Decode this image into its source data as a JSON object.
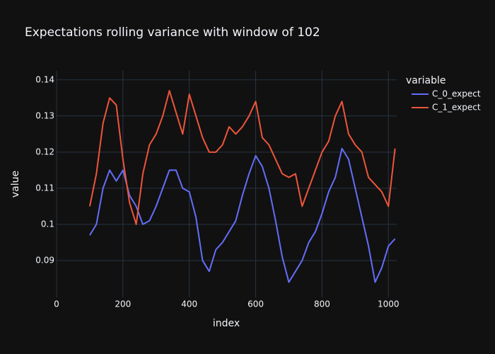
{
  "chart_data": {
    "type": "line",
    "title": "Expectations rolling variance with window of 102",
    "x_label": "index",
    "y_label": "value",
    "legend_title": "variable",
    "x": [
      100,
      120,
      140,
      160,
      180,
      200,
      220,
      240,
      260,
      280,
      300,
      320,
      340,
      360,
      380,
      400,
      420,
      440,
      460,
      480,
      500,
      520,
      540,
      560,
      580,
      600,
      620,
      640,
      660,
      680,
      700,
      720,
      740,
      760,
      780,
      800,
      820,
      840,
      860,
      880,
      900,
      920,
      940,
      960,
      980,
      1000,
      1020
    ],
    "series": [
      {
        "name": "C_0_expect",
        "color": "#636efa",
        "values": [
          0.097,
          0.1,
          0.11,
          0.115,
          0.112,
          0.115,
          0.108,
          0.105,
          0.1,
          0.101,
          0.105,
          0.11,
          0.115,
          0.115,
          0.11,
          0.109,
          0.102,
          0.09,
          0.087,
          0.093,
          0.095,
          0.098,
          0.101,
          0.108,
          0.114,
          0.119,
          0.116,
          0.11,
          0.101,
          0.091,
          0.084,
          0.087,
          0.09,
          0.095,
          0.098,
          0.103,
          0.109,
          0.113,
          0.121,
          0.118,
          0.11,
          0.102,
          0.094,
          0.084,
          0.088,
          0.094,
          0.096
        ]
      },
      {
        "name": "C_1_expect",
        "color": "#EF553B",
        "values": [
          0.105,
          0.114,
          0.128,
          0.135,
          0.133,
          0.118,
          0.106,
          0.1,
          0.114,
          0.122,
          0.125,
          0.13,
          0.137,
          0.131,
          0.125,
          0.136,
          0.13,
          0.124,
          0.12,
          0.12,
          0.122,
          0.127,
          0.125,
          0.127,
          0.13,
          0.134,
          0.124,
          0.122,
          0.118,
          0.114,
          0.113,
          0.114,
          0.105,
          0.11,
          0.115,
          0.12,
          0.123,
          0.13,
          0.134,
          0.125,
          0.122,
          0.12,
          0.113,
          0.111,
          0.109,
          0.105,
          0.121
        ]
      }
    ],
    "xlim": [
      0,
      1025
    ],
    "xticks": [
      0,
      200,
      400,
      600,
      800,
      1000
    ],
    "ylim": [
      0.0798,
      0.1425
    ],
    "yticks": [
      0.09,
      0.1,
      0.11,
      0.12,
      0.13,
      0.14
    ],
    "grid": true,
    "legend_position": "right"
  }
}
